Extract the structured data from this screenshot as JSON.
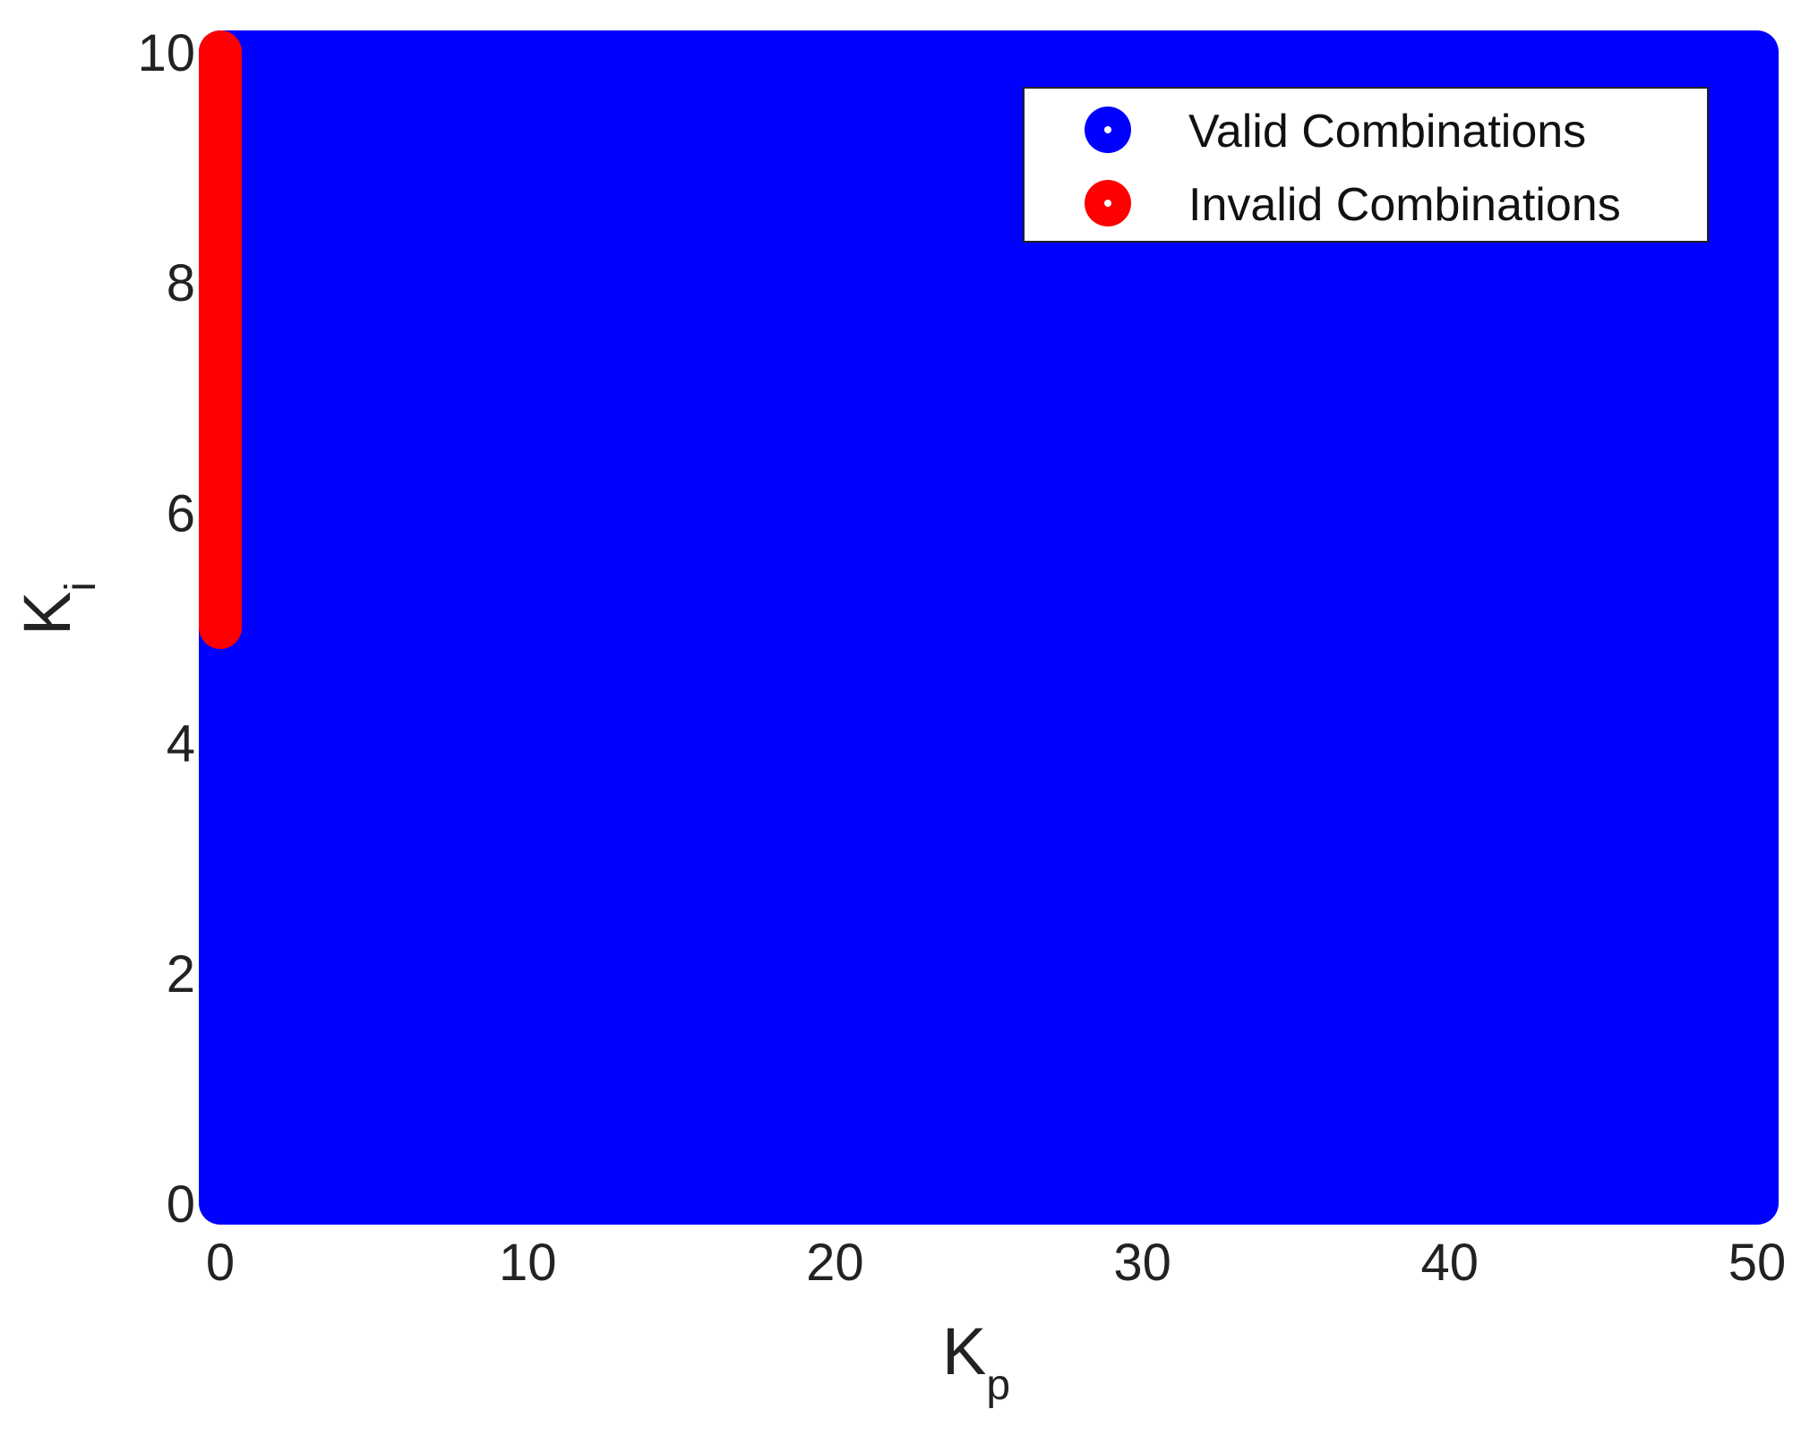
{
  "chart_data": {
    "type": "scatter",
    "xlabel": {
      "main": "K",
      "sub": "p"
    },
    "ylabel": {
      "main": "K",
      "sub": "i"
    },
    "xlim": [
      0,
      50
    ],
    "ylim": [
      0,
      10
    ],
    "xticks": [
      0,
      10,
      20,
      30,
      40,
      50
    ],
    "yticks": [
      0,
      2,
      4,
      6,
      8,
      10
    ],
    "grid": false,
    "legend_position": "top-right",
    "series": [
      {
        "name": "Valid Combinations",
        "color": "#0000ff",
        "marker": "circle",
        "region": {
          "x": [
            0,
            50
          ],
          "y": [
            0,
            10
          ]
        },
        "excluding": {
          "x": [
            0,
            0
          ],
          "y": [
            5,
            10
          ]
        }
      },
      {
        "name": "Invalid Combinations",
        "color": "#ff0000",
        "marker": "circle",
        "region": {
          "x": [
            0,
            0
          ],
          "y": [
            5,
            10
          ]
        }
      }
    ]
  }
}
